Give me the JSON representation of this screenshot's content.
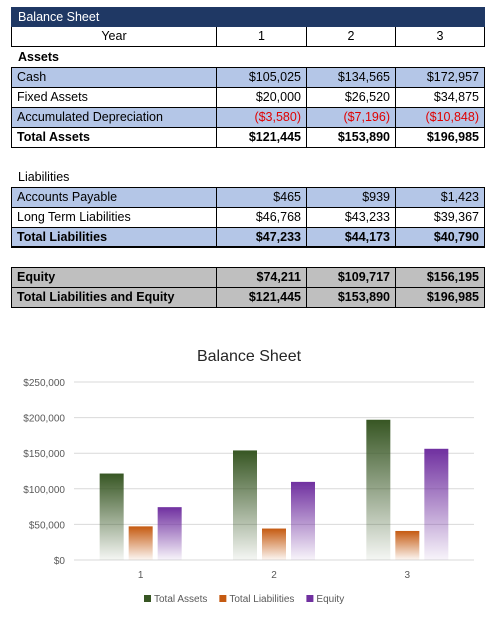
{
  "table": {
    "title": "Balance Sheet",
    "header": {
      "label": "Year",
      "years": [
        "1",
        "2",
        "3"
      ]
    },
    "assets_label": "Assets",
    "assets_rows": [
      {
        "label": "Cash",
        "values": [
          "$105,025",
          "$134,565",
          "$172,957"
        ]
      },
      {
        "label": "Fixed Assets",
        "values": [
          "$20,000",
          "$26,520",
          "$34,875"
        ]
      },
      {
        "label": "Accumulated Depreciation",
        "values": [
          "($3,580)",
          "($7,196)",
          "($10,848)"
        ]
      }
    ],
    "total_assets": {
      "label": "Total Assets",
      "values": [
        "$121,445",
        "$153,890",
        "$196,985"
      ]
    },
    "liabilities_label": "Liabilities",
    "liabilities_rows": [
      {
        "label": "Accounts Payable",
        "values": [
          "$465",
          "$939",
          "$1,423"
        ]
      },
      {
        "label": "Long Term Liabilities",
        "values": [
          "$46,768",
          "$43,233",
          "$39,367"
        ]
      }
    ],
    "total_liabilities": {
      "label": "Total Liabilities",
      "values": [
        "$47,233",
        "$44,173",
        "$40,790"
      ]
    },
    "equity": {
      "label": "Equity",
      "values": [
        "$74,211",
        "$109,717",
        "$156,195"
      ]
    },
    "total_le": {
      "label": "Total Liabilities and Equity",
      "values": [
        "$121,445",
        "$153,890",
        "$196,985"
      ]
    }
  },
  "chart_data": {
    "type": "bar",
    "title": "Balance Sheet",
    "categories": [
      "1",
      "2",
      "3"
    ],
    "series": [
      {
        "name": "Total Assets",
        "values": [
          121445,
          153890,
          196985
        ],
        "color": "#375623"
      },
      {
        "name": "Total Liabilities",
        "values": [
          47233,
          44173,
          40790
        ],
        "color": "#c55a11"
      },
      {
        "name": "Equity",
        "values": [
          74211,
          109717,
          156195
        ],
        "color": "#7030a0"
      }
    ],
    "ylim": [
      0,
      250000
    ],
    "yticks": [
      0,
      50000,
      100000,
      150000,
      200000,
      250000
    ],
    "ytick_labels": [
      "$0",
      "$50,000",
      "$100,000",
      "$150,000",
      "$200,000",
      "$250,000"
    ],
    "grid": true,
    "legend": "bottom"
  }
}
